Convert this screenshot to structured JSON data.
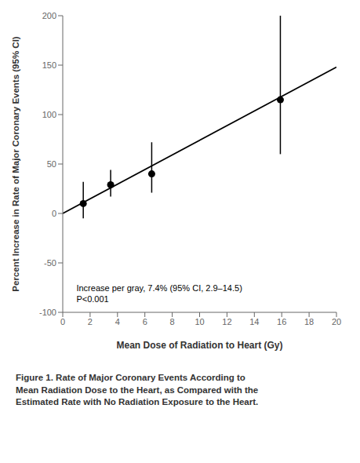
{
  "chart_data": {
    "type": "scatter",
    "xlabel": "Mean Dose of Radiation to Heart (Gy)",
    "ylabel": "Percent Increase in Rate of Major Coronary Events (95% CI)",
    "xlim": [
      0,
      20
    ],
    "ylim": [
      -100,
      200
    ],
    "xticks": [
      0,
      2,
      4,
      6,
      8,
      10,
      12,
      14,
      16,
      18,
      20
    ],
    "yticks": [
      -100,
      -50,
      0,
      50,
      100,
      150,
      200
    ],
    "grid": false,
    "series": [
      {
        "type": "line",
        "color": "#000000",
        "x": [
          0,
          20
        ],
        "values": [
          0,
          148
        ]
      },
      {
        "type": "scatter",
        "color": "#000000",
        "x": [
          1.5,
          3.5,
          6.5,
          15.9
        ],
        "values": [
          10,
          29,
          40,
          115
        ],
        "error_low": [
          15,
          12,
          19,
          55
        ],
        "error_high": [
          22,
          15,
          32,
          85
        ]
      }
    ],
    "annotations": [
      {
        "text": [
          "Increase per gray, 7.4% (95% CI, 2.9–14.5)",
          "P<0.001"
        ],
        "x": 1.0,
        "y": -70
      }
    ],
    "caption": [
      "Figure 1. Rate of Major Coronary Events According to",
      "Mean Radiation Dose to the Heart, as Compared with the",
      "Estimated Rate with No Radiation Exposure to the Heart."
    ]
  }
}
